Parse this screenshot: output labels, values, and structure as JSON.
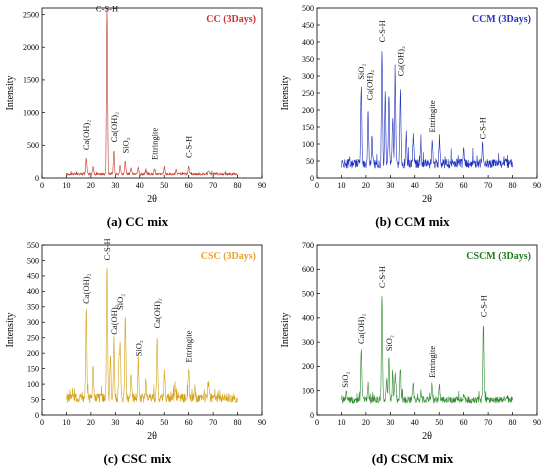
{
  "captions": [
    "(a)  CC mix",
    "(b)  CCM mix",
    "(c)  CSC mix",
    "(d)  CSCM mix"
  ],
  "chart_data": [
    {
      "type": "line",
      "title": "CC (3Days)",
      "xlabel": "2θ",
      "ylabel": "Intensity",
      "xlim": [
        0,
        90
      ],
      "ylim": [
        0,
        2600
      ],
      "xticks": [
        0,
        10,
        20,
        30,
        40,
        50,
        60,
        70,
        80,
        90
      ],
      "yticks": [
        0,
        500,
        1000,
        1500,
        2000,
        2500
      ],
      "color": "#c0392b",
      "title_color": "#d03030",
      "legend": "top-right",
      "baseline": 60,
      "noise": 35,
      "x_range": [
        10,
        80
      ],
      "peaks": [
        {
          "x": 18.1,
          "y": 300
        },
        {
          "x": 20.9,
          "y": 180
        },
        {
          "x": 26.6,
          "y": 2600
        },
        {
          "x": 29.4,
          "y": 420
        },
        {
          "x": 32.0,
          "y": 200
        },
        {
          "x": 34.1,
          "y": 260
        },
        {
          "x": 36.5,
          "y": 150
        },
        {
          "x": 39.4,
          "y": 170
        },
        {
          "x": 42.5,
          "y": 120
        },
        {
          "x": 46.0,
          "y": 140
        },
        {
          "x": 50.1,
          "y": 170
        },
        {
          "x": 54.9,
          "y": 120
        },
        {
          "x": 60.0,
          "y": 180
        },
        {
          "x": 68.1,
          "y": 110
        }
      ],
      "annotations": [
        {
          "text": "C-S-H",
          "x": 26.6,
          "y": 2500,
          "rotate": 0
        },
        {
          "text": "Ca(OH)₂",
          "x": 18.1,
          "y": 380,
          "rotate": -90
        },
        {
          "text": "Ca(OH)₂",
          "x": 29.4,
          "y": 500,
          "rotate": -90
        },
        {
          "text": "SiO₂",
          "x": 34.1,
          "y": 330,
          "rotate": -90
        },
        {
          "text": "Ettringite",
          "x": 46.0,
          "y": 230,
          "rotate": -90
        },
        {
          "text": "C-S-H",
          "x": 60.0,
          "y": 260,
          "rotate": -90
        }
      ]
    },
    {
      "type": "line",
      "title": "CCM (3Days)",
      "xlabel": "2θ",
      "ylabel": "Intensity",
      "xlim": [
        0,
        90
      ],
      "ylim": [
        0,
        500
      ],
      "xticks": [
        0,
        10,
        20,
        30,
        40,
        50,
        60,
        70,
        80,
        90
      ],
      "yticks": [
        0,
        50,
        100,
        150,
        200,
        250,
        300,
        350,
        400,
        450,
        500
      ],
      "color": "#1f2fbf",
      "title_color": "#2233bb",
      "legend": "top-right",
      "baseline": 42,
      "noise": 28,
      "x_range": [
        10,
        80
      ],
      "peaks": [
        {
          "x": 18.1,
          "y": 270
        },
        {
          "x": 20.9,
          "y": 200
        },
        {
          "x": 22.5,
          "y": 120
        },
        {
          "x": 26.6,
          "y": 380
        },
        {
          "x": 27.9,
          "y": 260
        },
        {
          "x": 29.4,
          "y": 240
        },
        {
          "x": 31.0,
          "y": 180
        },
        {
          "x": 32.0,
          "y": 290
        },
        {
          "x": 34.1,
          "y": 250
        },
        {
          "x": 36.5,
          "y": 140
        },
        {
          "x": 39.4,
          "y": 120
        },
        {
          "x": 42.5,
          "y": 100
        },
        {
          "x": 47.1,
          "y": 110
        },
        {
          "x": 50.1,
          "y": 120
        },
        {
          "x": 60.0,
          "y": 80
        },
        {
          "x": 67.8,
          "y": 95
        }
      ],
      "annotations": [
        {
          "text": "SiO₂",
          "x": 18.1,
          "y": 280,
          "rotate": -90
        },
        {
          "text": "Ca(OH)₂",
          "x": 21.5,
          "y": 220,
          "rotate": -90
        },
        {
          "text": "C-S-H",
          "x": 26.6,
          "y": 390,
          "rotate": -90
        },
        {
          "text": "Ca(OH)₂",
          "x": 34.1,
          "y": 290,
          "rotate": -90
        },
        {
          "text": "Ettringite",
          "x": 47.1,
          "y": 125,
          "rotate": -90
        },
        {
          "text": "C-S-H",
          "x": 67.8,
          "y": 105,
          "rotate": -90
        }
      ]
    },
    {
      "type": "line",
      "title": "CSC (3Days)",
      "xlabel": "2θ",
      "ylabel": "Intensity",
      "xlim": [
        0,
        90
      ],
      "ylim": [
        0,
        550
      ],
      "xticks": [
        0,
        10,
        20,
        30,
        40,
        50,
        60,
        70,
        80,
        90
      ],
      "yticks": [
        0,
        50,
        100,
        150,
        200,
        250,
        300,
        350,
        400,
        450,
        500,
        550
      ],
      "color": "#d4a017",
      "title_color": "#e8a22e",
      "legend": "top-right",
      "baseline": 55,
      "noise": 30,
      "x_range": [
        10,
        80
      ],
      "peaks": [
        {
          "x": 18.1,
          "y": 340
        },
        {
          "x": 20.9,
          "y": 150
        },
        {
          "x": 26.6,
          "y": 480
        },
        {
          "x": 28.0,
          "y": 190
        },
        {
          "x": 29.4,
          "y": 240
        },
        {
          "x": 31.5,
          "y": 180
        },
        {
          "x": 32.0,
          "y": 230
        },
        {
          "x": 34.1,
          "y": 320
        },
        {
          "x": 36.5,
          "y": 140
        },
        {
          "x": 39.4,
          "y": 170
        },
        {
          "x": 42.5,
          "y": 110
        },
        {
          "x": 47.1,
          "y": 260
        },
        {
          "x": 50.1,
          "y": 140
        },
        {
          "x": 54.4,
          "y": 100
        },
        {
          "x": 60.0,
          "y": 150
        },
        {
          "x": 62.5,
          "y": 90
        },
        {
          "x": 68.1,
          "y": 100
        }
      ],
      "annotations": [
        {
          "text": "Ca(OH)₂",
          "x": 18.1,
          "y": 350,
          "rotate": -90
        },
        {
          "text": "C-S-H",
          "x": 26.6,
          "y": 490,
          "rotate": -90
        },
        {
          "text": "Ca(OH)₂",
          "x": 29.4,
          "y": 250,
          "rotate": -90
        },
        {
          "text": "SiO₂",
          "x": 32.0,
          "y": 330,
          "rotate": -90
        },
        {
          "text": "SiO₂",
          "x": 39.4,
          "y": 180,
          "rotate": -90
        },
        {
          "text": "Ca(OH)₂",
          "x": 47.1,
          "y": 270,
          "rotate": -90
        },
        {
          "text": "Ettringite",
          "x": 60.0,
          "y": 160,
          "rotate": -90
        }
      ]
    },
    {
      "type": "line",
      "title": "CSCM (3Days)",
      "xlabel": "2θ",
      "ylabel": "Intensity",
      "xlim": [
        0,
        90
      ],
      "ylim": [
        0,
        700
      ],
      "xticks": [
        0,
        10,
        20,
        30,
        40,
        50,
        60,
        70,
        80,
        90
      ],
      "yticks": [
        0,
        100,
        200,
        300,
        400,
        500,
        600,
        700
      ],
      "color": "#2e8b2e",
      "title_color": "#1f7a1f",
      "legend": "top-right",
      "baseline": 62,
      "noise": 28,
      "x_range": [
        10,
        80
      ],
      "peaks": [
        {
          "x": 12.0,
          "y": 90
        },
        {
          "x": 18.1,
          "y": 270
        },
        {
          "x": 20.9,
          "y": 130
        },
        {
          "x": 26.6,
          "y": 500
        },
        {
          "x": 28.5,
          "y": 150
        },
        {
          "x": 29.4,
          "y": 240
        },
        {
          "x": 31.0,
          "y": 150
        },
        {
          "x": 32.0,
          "y": 170
        },
        {
          "x": 34.1,
          "y": 190
        },
        {
          "x": 39.4,
          "y": 130
        },
        {
          "x": 42.5,
          "y": 100
        },
        {
          "x": 47.0,
          "y": 130
        },
        {
          "x": 50.1,
          "y": 120
        },
        {
          "x": 60.0,
          "y": 90
        },
        {
          "x": 68.1,
          "y": 380
        }
      ],
      "annotations": [
        {
          "text": "SiO₂",
          "x": 11.5,
          "y": 100,
          "rotate": -90
        },
        {
          "text": "Ca(OH)₂",
          "x": 18.1,
          "y": 280,
          "rotate": -90
        },
        {
          "text": "C-S-H",
          "x": 26.6,
          "y": 510,
          "rotate": -90
        },
        {
          "text": "SiO₂",
          "x": 29.4,
          "y": 250,
          "rotate": -90
        },
        {
          "text": "Ettringite",
          "x": 47.0,
          "y": 140,
          "rotate": -90
        },
        {
          "text": "C-S-H",
          "x": 68.1,
          "y": 390,
          "rotate": -90
        }
      ]
    }
  ]
}
